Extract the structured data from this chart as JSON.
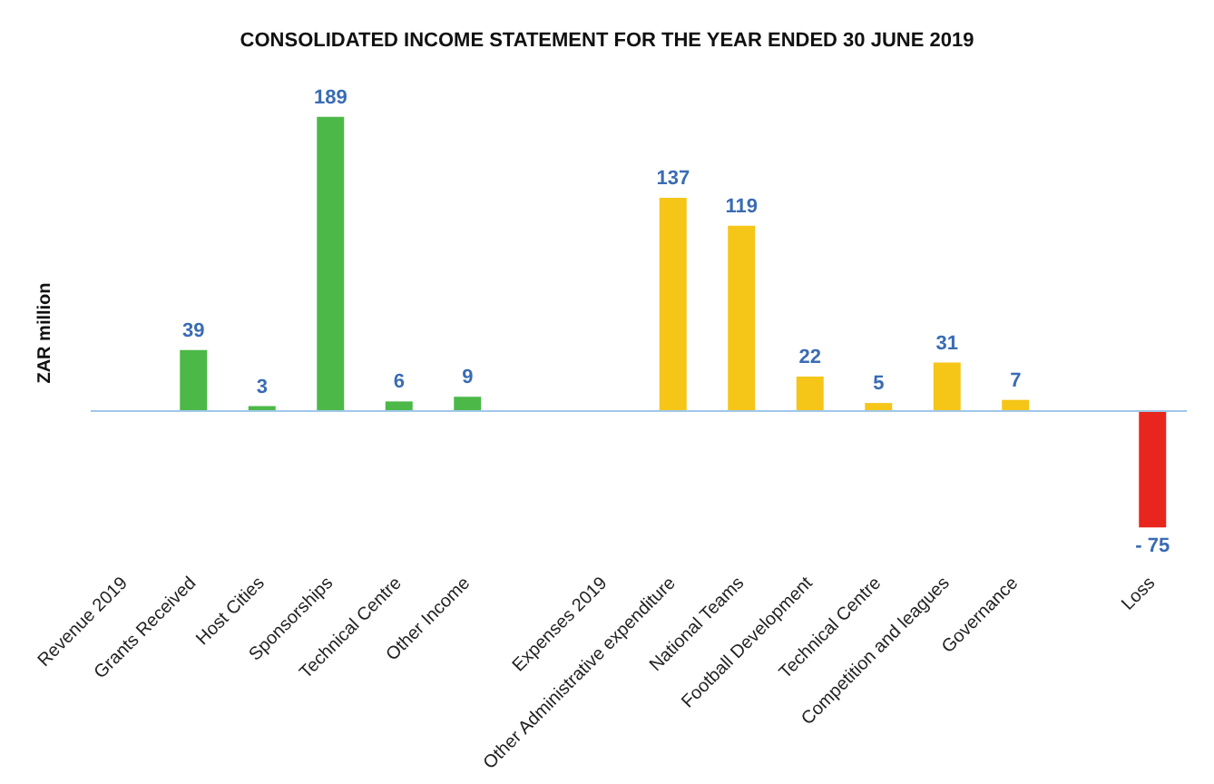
{
  "chart_data": {
    "type": "bar",
    "title": "CONSOLIDATED INCOME STATEMENT FOR THE YEAR ENDED 30 JUNE 2019",
    "ylabel": "ZAR million",
    "categories": [
      "Revenue 2019",
      "Grants Received",
      "Host Cities",
      "Sponsorships",
      "Technical Centre",
      "Other Income",
      null,
      "Expenses 2019",
      "Other Administrative expenditure",
      "National Teams",
      "Football Development",
      "Technical Centre",
      "Competition and leagues",
      "Governance",
      null,
      "Loss"
    ],
    "values": [
      null,
      39,
      3,
      189,
      6,
      9,
      null,
      null,
      137,
      119,
      22,
      5,
      31,
      7,
      null,
      -75
    ],
    "colors": [
      "#4cb848",
      "#4cb848",
      "#4cb848",
      "#4cb848",
      "#4cb848",
      "#4cb848",
      "#4cb848",
      "#f5c518",
      "#f5c518",
      "#f5c518",
      "#f5c518",
      "#f5c518",
      "#f5c518",
      "#f5c518",
      "#f5c518",
      "#e8261e"
    ],
    "value_labels": [
      null,
      "39",
      "3",
      "189",
      "6",
      "9",
      null,
      null,
      "137",
      "119",
      "22",
      "5",
      "31",
      "7",
      null,
      "- 75"
    ],
    "tick_labels": "x",
    "grid": false,
    "ref_lines": [
      {
        "axis": "y",
        "value": 0,
        "color": "#9fc8ea"
      }
    ]
  }
}
